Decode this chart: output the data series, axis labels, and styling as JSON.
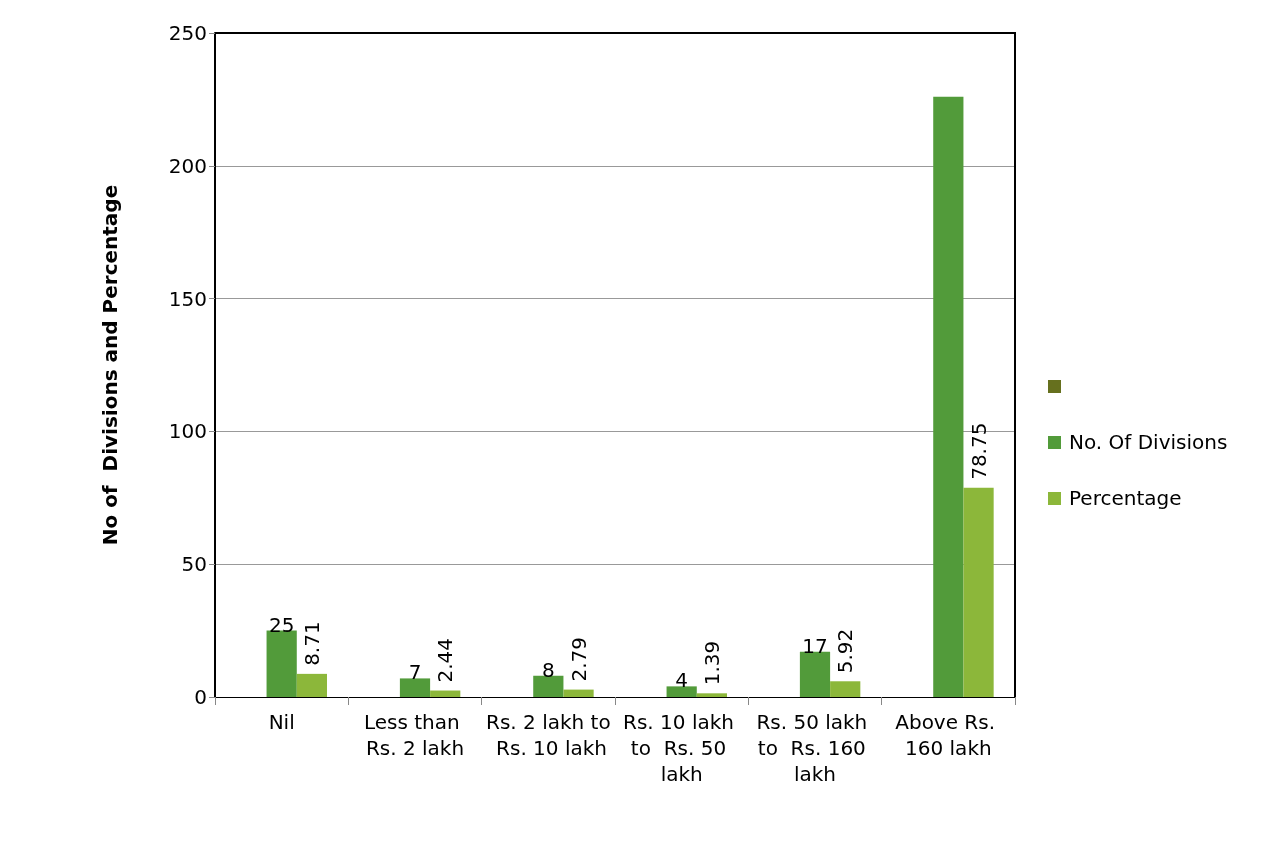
{
  "chart_data": {
    "type": "bar",
    "ylabel": "No of  Divisions and Percentage",
    "categories": [
      "Nil",
      "Less than Rs. 2 lakh",
      "Rs. 2 lakh to Rs. 10 lakh",
      "Rs. 10 lakh to  Rs. 50 lakh",
      "Rs. 50 lakh to  Rs. 160 lakh",
      "Above Rs. 160 lakh"
    ],
    "series": [
      {
        "color": "#66701e",
        "values": [
          null,
          null,
          null,
          null,
          null,
          null
        ]
      },
      {
        "name": "No. Of Divisions",
        "color": "#529b3a",
        "values": [
          25,
          7,
          8,
          4,
          17,
          226
        ],
        "value_labels": [
          "25",
          "7",
          "8",
          "4",
          "17",
          null
        ]
      },
      {
        "name": "Percentage",
        "color": "#8cb73a",
        "values": [
          8.71,
          2.44,
          2.79,
          1.39,
          5.92,
          78.75
        ],
        "value_labels": [
          "8.71",
          "2.44",
          "2.79",
          "1.39",
          "5.92",
          "78.75"
        ]
      }
    ],
    "ylim": [
      0,
      250
    ],
    "yticks": [
      0,
      50,
      100,
      150,
      200,
      250
    ],
    "grid": "y",
    "legend": "right"
  }
}
